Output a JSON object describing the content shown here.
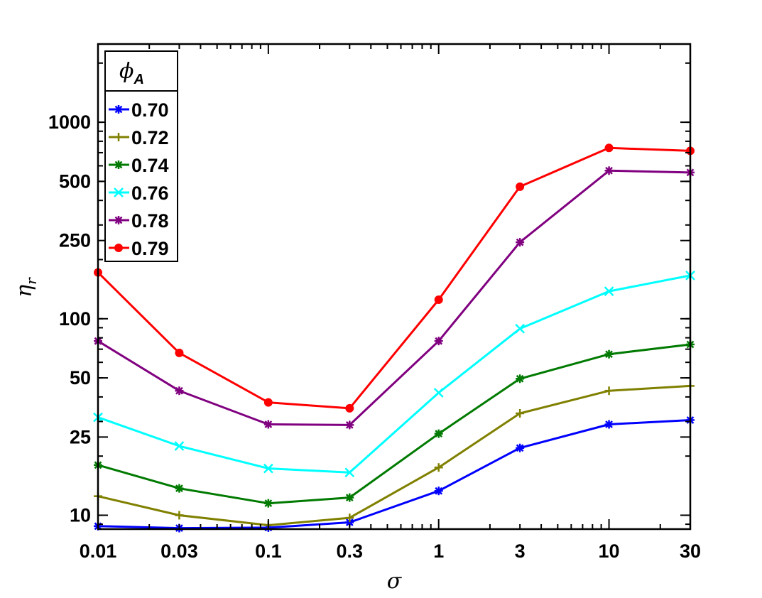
{
  "chart_data": {
    "type": "line",
    "xlabel": "σ",
    "ylabel": "η",
    "ylabel_sub": "r",
    "x_scale": "log",
    "y_scale": "log",
    "xlim": [
      0.01,
      30
    ],
    "ylim": [
      8.5,
      2500
    ],
    "x": [
      0.01,
      0.03,
      0.1,
      0.3,
      1,
      3,
      10,
      30
    ],
    "x_tick_labels": [
      "0.01",
      "0.03",
      "0.1",
      "0.3",
      "1",
      "3",
      "10",
      "30"
    ],
    "y_ticks": [
      10,
      25,
      50,
      100,
      250,
      500,
      1000
    ],
    "y_tick_labels": [
      "10",
      "25",
      "50",
      "100",
      "250",
      "500",
      "1000"
    ],
    "grid": false,
    "legend": {
      "placement": "top-left",
      "title": "ϕ",
      "title_sub": "A"
    },
    "series": [
      {
        "name": "0.70",
        "color": "#0000ff",
        "marker": "asterisk",
        "values": [
          8.8,
          8.6,
          8.65,
          9.2,
          13.3,
          22.0,
          29.0,
          30.5
        ]
      },
      {
        "name": "0.72",
        "color": "#808000",
        "marker": "plus",
        "values": [
          12.5,
          10.0,
          8.9,
          9.7,
          17.5,
          33.0,
          43.0,
          45.5
        ]
      },
      {
        "name": "0.74",
        "color": "#007a00",
        "marker": "asterisk",
        "values": [
          18.0,
          13.7,
          11.5,
          12.3,
          26.0,
          49.5,
          66.0,
          74.0
        ]
      },
      {
        "name": "0.76",
        "color": "#00ffff",
        "marker": "x",
        "values": [
          31.5,
          22.5,
          17.3,
          16.5,
          42.0,
          89.0,
          138.0,
          166.0
        ]
      },
      {
        "name": "0.78",
        "color": "#800080",
        "marker": "asterisk",
        "values": [
          77.0,
          43.0,
          29.0,
          28.8,
          77.0,
          245.0,
          567.0,
          555.0
        ]
      },
      {
        "name": "0.79",
        "color": "#ff0000",
        "marker": "dot",
        "values": [
          172.0,
          67.0,
          37.5,
          35.0,
          125.0,
          470.0,
          740.0,
          715.0
        ]
      }
    ]
  }
}
